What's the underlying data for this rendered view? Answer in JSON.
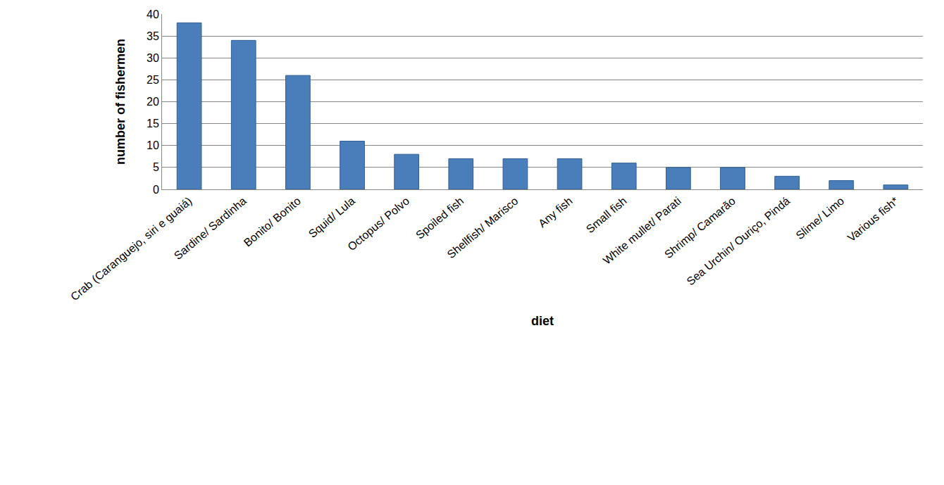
{
  "chart_data": {
    "type": "bar",
    "x_label": "diet",
    "y_label": "number of fishermen",
    "categories": [
      "Crab (Caranguejo, siri e guaiá)",
      "Sardine/ Sardinha",
      "Bonito/ Bonito",
      "Squid/ Lula",
      "Octopus/ Polvo",
      "Spoiled fish",
      "Shellfish/ Marisco",
      "Any fish",
      "Small fish",
      "White mullet/ Parati",
      "Shrimp/ Camarão",
      "Sea Urchin/ Ouriço, Pindá",
      "Slime/ Limo",
      "Various fish*"
    ],
    "values": [
      38,
      34,
      26,
      11,
      8,
      7,
      7,
      7,
      6,
      5,
      5,
      3,
      2,
      1
    ],
    "color": "#4a7ebb",
    "ylim": [
      0,
      40
    ],
    "yticks": [
      0,
      5,
      10,
      15,
      20,
      25,
      30,
      35,
      40
    ],
    "grid": true
  }
}
